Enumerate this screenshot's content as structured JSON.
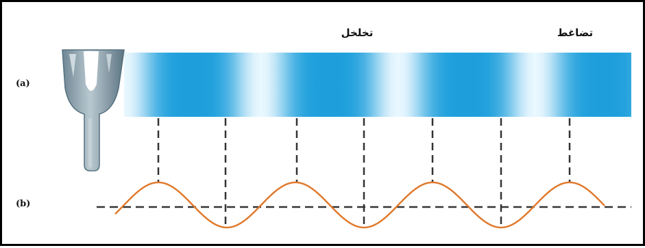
{
  "labels": {
    "rarefaction": "تخلخل",
    "compression": "تضاغط",
    "part_a": "(a)",
    "part_b": "(b)"
  },
  "colors": {
    "band_dark": "#1e9fdc",
    "band_light": "#eaf8ff",
    "wave": "#e07a2e",
    "dashed": "#333333",
    "fork": "#8fa3ae",
    "fork_dark": "#5d7583"
  },
  "icons": {
    "fork": "tuning-fork-icon"
  }
}
